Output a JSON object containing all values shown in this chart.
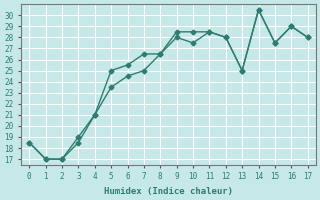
{
  "xlabel": "Humidex (Indice chaleur)",
  "ylabel": "",
  "xlim": [
    -0.5,
    17.5
  ],
  "ylim": [
    16.5,
    31
  ],
  "yticks": [
    17,
    18,
    19,
    20,
    21,
    22,
    23,
    24,
    25,
    26,
    27,
    28,
    29,
    30
  ],
  "xticks": [
    0,
    1,
    2,
    3,
    4,
    5,
    6,
    7,
    8,
    9,
    10,
    11,
    12,
    13,
    14,
    15,
    16,
    17
  ],
  "background_color": "#c6e8e8",
  "grid_color": "#ffffff",
  "line_color": "#2e7d6e",
  "line1_x": [
    0,
    1,
    2,
    3,
    4,
    5,
    6,
    7,
    8,
    9,
    10,
    11,
    12,
    13,
    14,
    15,
    16,
    17
  ],
  "line1_y": [
    18.5,
    17.0,
    17.0,
    18.5,
    21.0,
    25.0,
    25.5,
    26.5,
    26.5,
    28.5,
    28.5,
    28.5,
    28.0,
    25.0,
    30.5,
    27.5,
    29.0,
    28.0
  ],
  "line2_x": [
    0,
    1,
    2,
    3,
    4,
    5,
    6,
    7,
    8,
    9,
    10,
    11,
    12,
    13,
    14,
    15,
    16,
    17
  ],
  "line2_y": [
    18.5,
    17.0,
    17.0,
    19.0,
    21.0,
    23.5,
    24.5,
    25.0,
    26.5,
    28.0,
    27.5,
    28.5,
    28.0,
    25.0,
    30.5,
    27.5,
    29.0,
    28.0
  ]
}
